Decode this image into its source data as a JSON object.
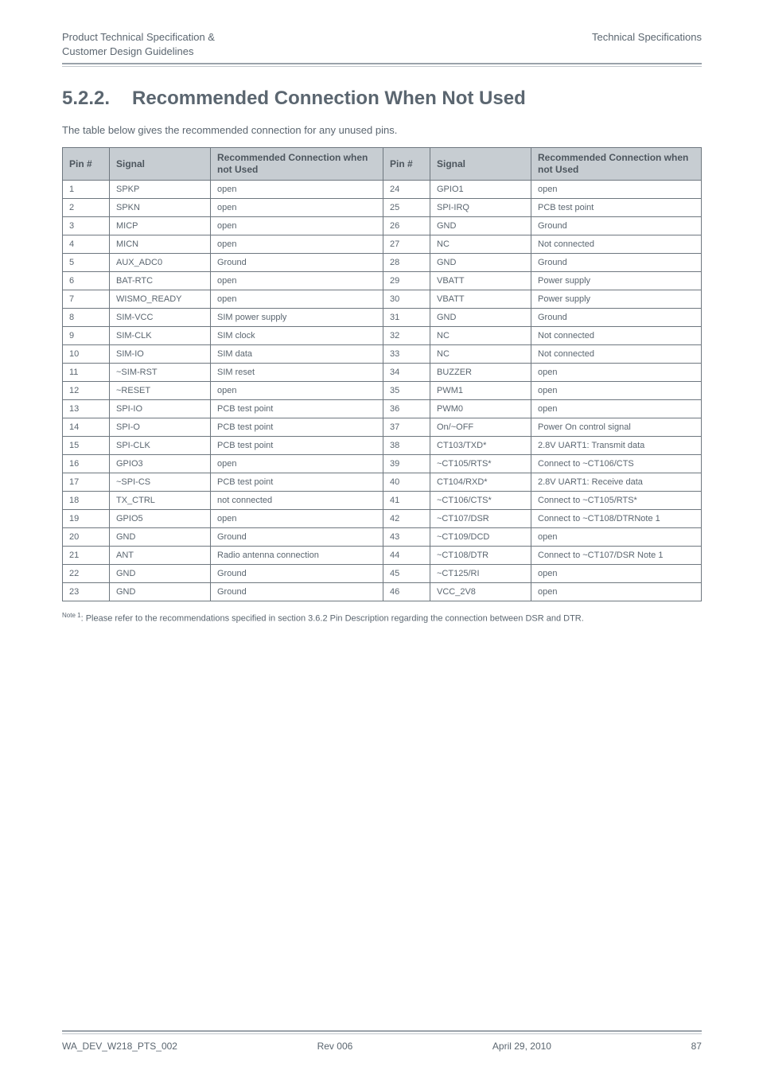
{
  "header": {
    "left_line1": "Product Technical Specification &",
    "left_line2": "Customer Design Guidelines",
    "right": "Technical Specifications"
  },
  "section": {
    "number": "5.2.2.",
    "title": "Recommended Connection When Not Used"
  },
  "intro": "The table below gives the recommended connection for any unused pins.",
  "columns": {
    "pin": "Pin #",
    "signal": "Signal",
    "rec_left": "Recommended Connection when not Used",
    "rec_right": "Recommended Connection when not Used"
  },
  "rows": [
    {
      "p1": "1",
      "s1": "SPKP",
      "r1": "open",
      "p2": "24",
      "s2": "GPIO1",
      "r2": "open"
    },
    {
      "p1": "2",
      "s1": "SPKN",
      "r1": "open",
      "p2": "25",
      "s2": "SPI-IRQ",
      "r2": "PCB test point"
    },
    {
      "p1": "3",
      "s1": "MICP",
      "r1": "open",
      "p2": "26",
      "s2": "GND",
      "r2": "Ground"
    },
    {
      "p1": "4",
      "s1": "MICN",
      "r1": "open",
      "p2": "27",
      "s2": "NC",
      "r2": "Not connected"
    },
    {
      "p1": "5",
      "s1": "AUX_ADC0",
      "r1": "Ground",
      "p2": "28",
      "s2": "GND",
      "r2": "Ground"
    },
    {
      "p1": "6",
      "s1": "BAT-RTC",
      "r1": "open",
      "p2": "29",
      "s2": "VBATT",
      "r2": "Power supply"
    },
    {
      "p1": "7",
      "s1": "WISMO_READY",
      "r1": "open",
      "p2": "30",
      "s2": "VBATT",
      "r2": "Power supply"
    },
    {
      "p1": "8",
      "s1": "SIM-VCC",
      "r1": "SIM power supply",
      "p2": "31",
      "s2": "GND",
      "r2": "Ground"
    },
    {
      "p1": "9",
      "s1": "SIM-CLK",
      "r1": "SIM clock",
      "p2": "32",
      "s2": "NC",
      "r2": "Not connected"
    },
    {
      "p1": "10",
      "s1": "SIM-IO",
      "r1": "SIM data",
      "p2": "33",
      "s2": "NC",
      "r2": "Not connected"
    },
    {
      "p1": "11",
      "s1": "~SIM-RST",
      "r1": "SIM reset",
      "p2": "34",
      "s2": "BUZZER",
      "r2": "open"
    },
    {
      "p1": "12",
      "s1": "~RESET",
      "r1": "open",
      "p2": "35",
      "s2": "PWM1",
      "r2": "open"
    },
    {
      "p1": "13",
      "s1": "SPI-IO",
      "r1": "PCB test point",
      "p2": "36",
      "s2": "PWM0",
      "r2": "open"
    },
    {
      "p1": "14",
      "s1": "SPI-O",
      "r1": "PCB test point",
      "p2": "37",
      "s2": "On/~OFF",
      "r2": "Power On control signal"
    },
    {
      "p1": "15",
      "s1": "SPI-CLK",
      "r1": "PCB test point",
      "p2": "38",
      "s2": "CT103/TXD*",
      "r2": "2.8V UART1: Transmit data"
    },
    {
      "p1": "16",
      "s1": "GPIO3",
      "r1": "open",
      "p2": "39",
      "s2": "~CT105/RTS*",
      "r2": "Connect to ~CT106/CTS"
    },
    {
      "p1": "17",
      "s1": "~SPI-CS",
      "r1": "PCB test point",
      "p2": "40",
      "s2": "CT104/RXD*",
      "r2": "2.8V UART1: Receive data"
    },
    {
      "p1": "18",
      "s1": "TX_CTRL",
      "r1": "not connected",
      "p2": "41",
      "s2": "~CT106/CTS*",
      "r2": "Connect to ~CT105/RTS*"
    },
    {
      "p1": "19",
      "s1": "GPIO5",
      "r1": "open",
      "p2": "42",
      "s2": "~CT107/DSR",
      "r2": "Connect to ~CT108/DTRNote 1"
    },
    {
      "p1": "20",
      "s1": "GND",
      "r1": "Ground",
      "p2": "43",
      "s2": "~CT109/DCD",
      "r2": "open"
    },
    {
      "p1": "21",
      "s1": "ANT",
      "r1": "Radio antenna connection",
      "p2": "44",
      "s2": "~CT108/DTR",
      "r2": "Connect to ~CT107/DSR Note 1"
    },
    {
      "p1": "22",
      "s1": "GND",
      "r1": "Ground",
      "p2": "45",
      "s2": "~CT125/RI",
      "r2": "open"
    },
    {
      "p1": "23",
      "s1": "GND",
      "r1": "Ground",
      "p2": "46",
      "s2": "VCC_2V8",
      "r2": "open"
    }
  ],
  "note": {
    "sup": "Note 1",
    "text": ":        Please refer to the recommendations specified in section 3.6.2 Pin Description regarding the connection between DSR and DTR."
  },
  "footer": {
    "doc": "WA_DEV_W218_PTS_002",
    "rev": "Rev 006",
    "date": "April 29, 2010",
    "page": "87"
  }
}
